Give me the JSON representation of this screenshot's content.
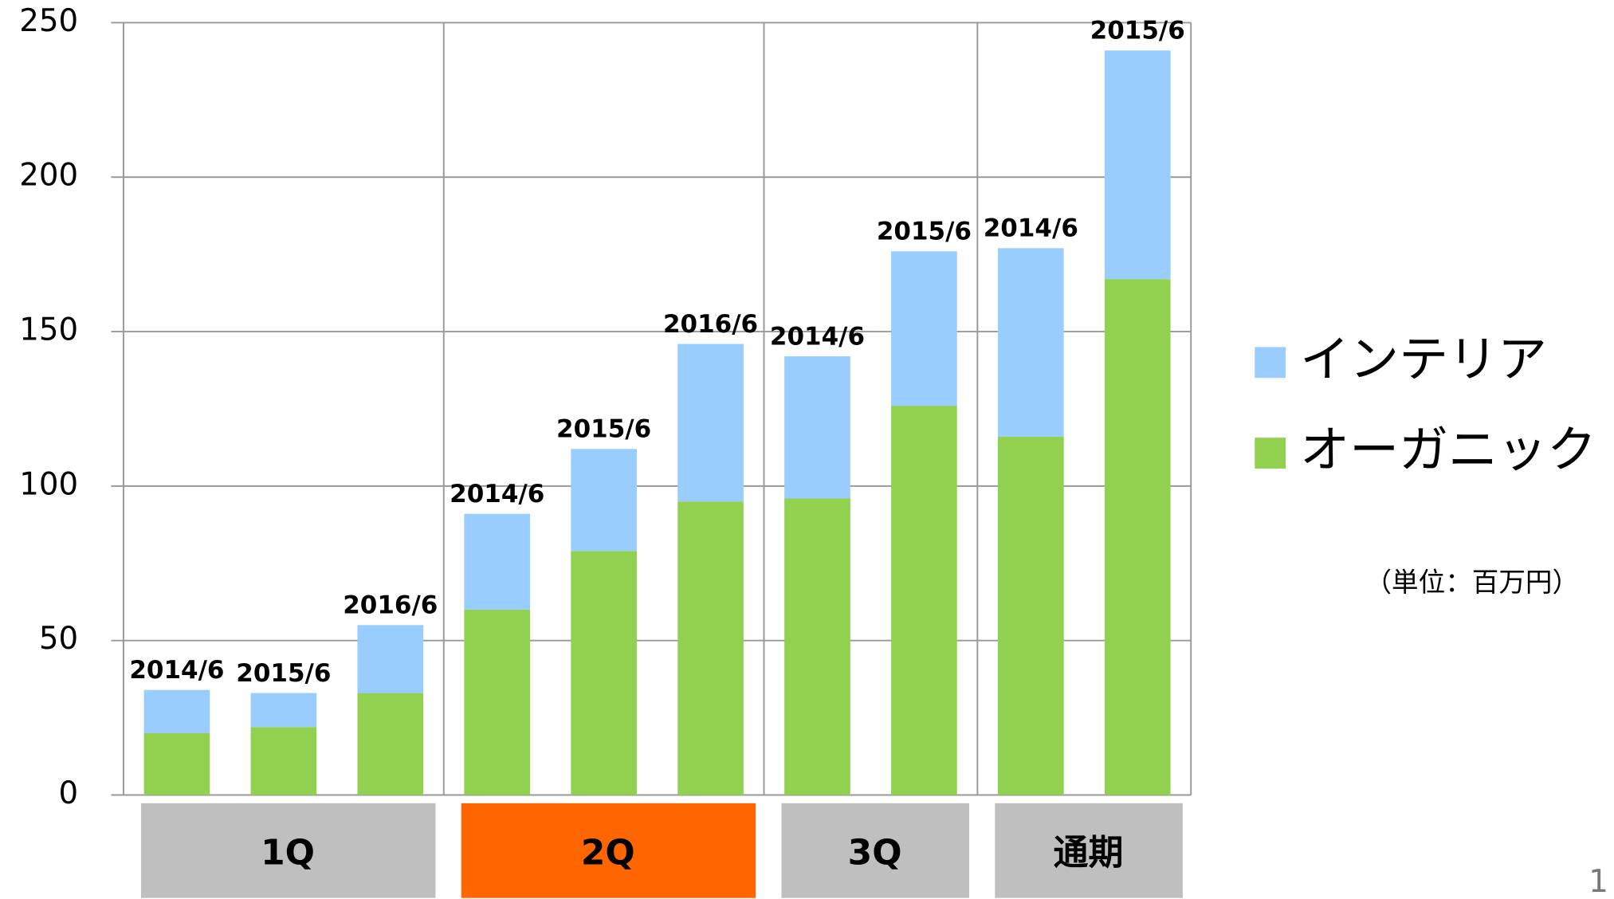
{
  "chart_data": {
    "type": "stacked_bar",
    "categories": [
      "2014/6",
      "2015/6",
      "2016/6",
      "2014/6",
      "2015/6",
      "2016/6",
      "2014/6",
      "2015/6",
      "2014/6",
      "2015/6"
    ],
    "series": [
      {
        "name": "オーガニック",
        "color": "#92d050",
        "values": [
          20,
          22,
          33,
          60,
          79,
          95,
          96,
          126,
          116,
          167
        ]
      },
      {
        "name": "インテリア",
        "color": "#99ccff",
        "values": [
          14,
          11,
          22,
          31,
          33,
          51,
          46,
          50,
          61,
          74
        ]
      }
    ],
    "groups": [
      {
        "label": "1Q",
        "size": 3,
        "color": "#bfbfbf"
      },
      {
        "label": "2Q",
        "size": 3,
        "color": "#ff6600"
      },
      {
        "label": "3Q",
        "size": 2,
        "color": "#bfbfbf"
      },
      {
        "label": "通期",
        "size": 2,
        "color": "#bfbfbf"
      }
    ],
    "ylim": [
      0,
      250
    ],
    "yticks": [
      0,
      50,
      100,
      150,
      200,
      250
    ],
    "grid": true,
    "legend": "right",
    "unit_note": "（単位：百万円）",
    "page_number": "1"
  }
}
